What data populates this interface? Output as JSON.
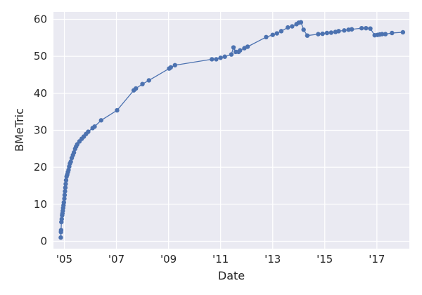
{
  "chart_data": {
    "type": "line",
    "title": "",
    "xlabel": "Date",
    "ylabel": "BMeTric",
    "x_scale": "time",
    "xlim": [
      "2004-08-01",
      "2018-04-01"
    ],
    "ylim": [
      -2,
      62
    ],
    "grid": true,
    "x_ticks": [
      {
        "date": "2005-01-01",
        "label": "'05"
      },
      {
        "date": "2007-01-01",
        "label": "'07"
      },
      {
        "date": "2009-01-01",
        "label": "'09"
      },
      {
        "date": "2011-01-01",
        "label": "'11"
      },
      {
        "date": "2013-01-01",
        "label": "'13"
      },
      {
        "date": "2015-01-01",
        "label": "'15"
      },
      {
        "date": "2017-01-01",
        "label": "'17"
      }
    ],
    "y_ticks": [
      0,
      10,
      20,
      30,
      40,
      50,
      60
    ],
    "colors": {
      "series": "#4c72b0",
      "background": "#eaeaf2",
      "grid": "#ffffff"
    },
    "series": [
      {
        "points": [
          [
            "2004-11-12",
            1.0
          ],
          [
            "2004-11-14",
            2.5
          ],
          [
            "2004-11-16",
            3.0
          ],
          [
            "2004-11-20",
            5.2
          ],
          [
            "2004-11-25",
            6.0
          ],
          [
            "2004-12-01",
            7.0
          ],
          [
            "2004-12-05",
            7.5
          ],
          [
            "2004-12-10",
            8.2
          ],
          [
            "2004-12-15",
            9.0
          ],
          [
            "2004-12-20",
            9.7
          ],
          [
            "2004-12-25",
            10.5
          ],
          [
            "2005-01-01",
            11.5
          ],
          [
            "2005-01-05",
            12.5
          ],
          [
            "2005-01-10",
            13.5
          ],
          [
            "2005-01-15",
            14.5
          ],
          [
            "2005-01-20",
            15.5
          ],
          [
            "2005-01-25",
            16.5
          ],
          [
            "2005-02-01",
            17.5
          ],
          [
            "2005-02-10",
            18.0
          ],
          [
            "2005-02-20",
            18.7
          ],
          [
            "2005-03-01",
            19.3
          ],
          [
            "2005-03-10",
            20.2
          ],
          [
            "2005-03-20",
            21.0
          ],
          [
            "2005-04-01",
            21.5
          ],
          [
            "2005-04-15",
            22.5
          ],
          [
            "2005-05-01",
            23.3
          ],
          [
            "2005-05-15",
            24.0
          ],
          [
            "2005-06-01",
            25.0
          ],
          [
            "2005-06-15",
            25.6
          ],
          [
            "2005-07-01",
            26.2
          ],
          [
            "2005-08-01",
            27.0
          ],
          [
            "2005-09-01",
            27.7
          ],
          [
            "2005-10-01",
            28.3
          ],
          [
            "2005-11-01",
            29.0
          ],
          [
            "2005-12-01",
            29.6
          ],
          [
            "2006-02-01",
            30.6
          ],
          [
            "2006-03-01",
            31.0
          ],
          [
            "2006-06-01",
            32.7
          ],
          [
            "2007-01-10",
            35.4
          ],
          [
            "2007-09-01",
            40.8
          ],
          [
            "2007-10-01",
            41.3
          ],
          [
            "2008-01-01",
            42.5
          ],
          [
            "2008-04-01",
            43.5
          ],
          [
            "2009-01-10",
            46.7
          ],
          [
            "2009-02-01",
            47.0
          ],
          [
            "2009-04-01",
            47.6
          ],
          [
            "2010-09-01",
            49.2
          ],
          [
            "2010-11-01",
            49.2
          ],
          [
            "2011-01-01",
            49.6
          ],
          [
            "2011-03-01",
            49.9
          ],
          [
            "2011-06-01",
            50.5
          ],
          [
            "2011-07-01",
            52.4
          ],
          [
            "2011-08-01",
            51.2
          ],
          [
            "2011-09-10",
            51.2
          ],
          [
            "2011-10-01",
            51.6
          ],
          [
            "2011-12-01",
            52.2
          ],
          [
            "2012-01-15",
            52.6
          ],
          [
            "2012-10-01",
            55.2
          ],
          [
            "2013-01-01",
            55.8
          ],
          [
            "2013-03-01",
            56.2
          ],
          [
            "2013-05-01",
            56.8
          ],
          [
            "2013-08-01",
            57.8
          ],
          [
            "2013-10-01",
            58.1
          ],
          [
            "2013-12-01",
            58.7
          ],
          [
            "2014-01-01",
            59.1
          ],
          [
            "2014-02-01",
            59.2
          ],
          [
            "2014-03-10",
            57.2
          ],
          [
            "2014-05-01",
            55.6
          ],
          [
            "2014-10-01",
            56.0
          ],
          [
            "2014-12-01",
            56.1
          ],
          [
            "2015-02-01",
            56.3
          ],
          [
            "2015-04-01",
            56.4
          ],
          [
            "2015-06-01",
            56.6
          ],
          [
            "2015-07-15",
            56.8
          ],
          [
            "2015-10-01",
            57.0
          ],
          [
            "2015-12-01",
            57.2
          ],
          [
            "2016-01-15",
            57.3
          ],
          [
            "2016-06-01",
            57.6
          ],
          [
            "2016-08-01",
            57.6
          ],
          [
            "2016-10-01",
            57.5
          ],
          [
            "2016-12-01",
            55.7
          ],
          [
            "2017-01-10",
            55.8
          ],
          [
            "2017-02-10",
            55.9
          ],
          [
            "2017-03-15",
            56.0
          ],
          [
            "2017-05-01",
            56.0
          ],
          [
            "2017-08-01",
            56.3
          ],
          [
            "2018-01-01",
            56.5
          ]
        ]
      }
    ]
  }
}
